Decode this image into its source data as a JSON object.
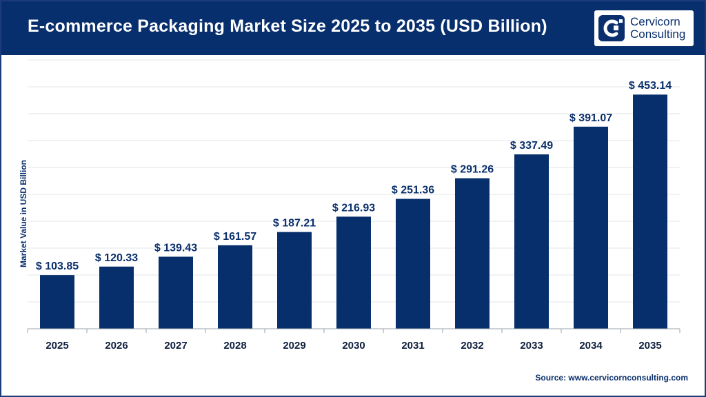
{
  "header": {
    "title": "E-commerce Packaging Market Size 2025 to 2035 (USD Billion)",
    "logo_line1": "Cervicorn",
    "logo_line2": "Consulting"
  },
  "source": "Source: www.cervicornconsulting.com",
  "colors": {
    "header_bg": "#082f6d",
    "bar": "#072f6b",
    "text_dark": "#0a2f6c",
    "grid": "#e3e6ea"
  },
  "chart_data": {
    "type": "bar",
    "categories": [
      "2025",
      "2026",
      "2027",
      "2028",
      "2029",
      "2030",
      "2031",
      "2032",
      "2033",
      "2034",
      "2035"
    ],
    "values": [
      103.85,
      120.33,
      139.43,
      161.57,
      187.21,
      216.93,
      251.36,
      291.26,
      337.49,
      391.07,
      453.14
    ],
    "data_labels": [
      "$ 103.85",
      "$ 120.33",
      "$ 139.43",
      "$ 161.57",
      "$ 187.21",
      "$ 216.93",
      "$ 251.36",
      "$ 291.26",
      "$ 337.49",
      "$ 391.07",
      "$ 453.14"
    ],
    "title": "E-commerce Packaging Market Size 2025 to 2035 (USD Billion)",
    "xlabel": "",
    "ylabel": "Market Value in USD Billion",
    "ylim": [
      0,
      500
    ],
    "grid": true
  }
}
